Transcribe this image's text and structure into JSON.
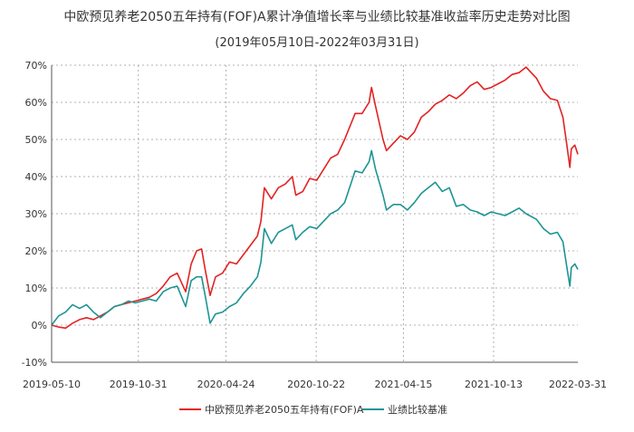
{
  "chart_data": {
    "type": "line",
    "title": "中欧预见养老2050五年持有(FOF)A累计净值增长率与业绩比较基准收益率历史走势对比图",
    "subtitle": "(2019年05月10日-2022年03月31日)",
    "xlabel": "",
    "ylabel": "",
    "x_ticks": [
      "2019-05-10",
      "2019-10-31",
      "2020-04-24",
      "2020-10-22",
      "2021-04-15",
      "2021-10-13",
      "2022-03-31"
    ],
    "y_ticks": [
      "70%",
      "60%",
      "50%",
      "40%",
      "30%",
      "20%",
      "10%",
      "0%",
      "-10%"
    ],
    "ylim": [
      -10,
      70
    ],
    "xlim": [
      "2019-05-10",
      "2022-03-31"
    ],
    "grid": true,
    "legend_position": "bottom-center",
    "series": [
      {
        "name": "中欧预见养老2050五年持有(FOF)A",
        "color": "#e32222",
        "points": [
          [
            "2019-05-10",
            0.0
          ],
          [
            "2019-05-24",
            -0.5
          ],
          [
            "2019-06-07",
            -0.8
          ],
          [
            "2019-06-21",
            0.5
          ],
          [
            "2019-07-05",
            1.5
          ],
          [
            "2019-07-19",
            2.0
          ],
          [
            "2019-08-02",
            1.5
          ],
          [
            "2019-08-16",
            2.5
          ],
          [
            "2019-08-30",
            3.5
          ],
          [
            "2019-09-13",
            5.0
          ],
          [
            "2019-09-27",
            5.5
          ],
          [
            "2019-10-11",
            6.0
          ],
          [
            "2019-10-25",
            6.5
          ],
          [
            "2019-11-08",
            7.0
          ],
          [
            "2019-11-22",
            7.5
          ],
          [
            "2019-12-06",
            8.5
          ],
          [
            "2019-12-20",
            10.5
          ],
          [
            "2020-01-03",
            13.0
          ],
          [
            "2020-01-17",
            14.0
          ],
          [
            "2020-02-03",
            9.0
          ],
          [
            "2020-02-14",
            16.5
          ],
          [
            "2020-02-25",
            20.0
          ],
          [
            "2020-03-06",
            20.5
          ],
          [
            "2020-03-13",
            15.0
          ],
          [
            "2020-03-23",
            8.0
          ],
          [
            "2020-04-03",
            13.0
          ],
          [
            "2020-04-17",
            14.0
          ],
          [
            "2020-05-01",
            17.0
          ],
          [
            "2020-05-15",
            16.5
          ],
          [
            "2020-05-29",
            19.0
          ],
          [
            "2020-06-12",
            21.5
          ],
          [
            "2020-06-26",
            24.0
          ],
          [
            "2020-07-03",
            28.0
          ],
          [
            "2020-07-10",
            37.0
          ],
          [
            "2020-07-24",
            34.0
          ],
          [
            "2020-08-07",
            37.0
          ],
          [
            "2020-08-21",
            38.0
          ],
          [
            "2020-09-04",
            40.0
          ],
          [
            "2020-09-11",
            35.0
          ],
          [
            "2020-09-25",
            36.0
          ],
          [
            "2020-10-09",
            39.5
          ],
          [
            "2020-10-23",
            39.0
          ],
          [
            "2020-11-06",
            42.0
          ],
          [
            "2020-11-20",
            45.0
          ],
          [
            "2020-12-04",
            46.0
          ],
          [
            "2020-12-18",
            50.0
          ],
          [
            "2021-01-08",
            57.0
          ],
          [
            "2021-01-22",
            57.0
          ],
          [
            "2021-02-05",
            60.0
          ],
          [
            "2021-02-10",
            64.0
          ],
          [
            "2021-02-18",
            59.0
          ],
          [
            "2021-03-05",
            50.0
          ],
          [
            "2021-03-12",
            47.0
          ],
          [
            "2021-03-26",
            49.0
          ],
          [
            "2021-04-09",
            51.0
          ],
          [
            "2021-04-23",
            50.0
          ],
          [
            "2021-05-07",
            52.0
          ],
          [
            "2021-05-21",
            56.0
          ],
          [
            "2021-06-04",
            57.5
          ],
          [
            "2021-06-18",
            59.5
          ],
          [
            "2021-07-02",
            60.5
          ],
          [
            "2021-07-16",
            62.0
          ],
          [
            "2021-07-30",
            61.0
          ],
          [
            "2021-08-13",
            62.5
          ],
          [
            "2021-08-27",
            64.5
          ],
          [
            "2021-09-10",
            65.5
          ],
          [
            "2021-09-24",
            63.5
          ],
          [
            "2021-10-08",
            64.0
          ],
          [
            "2021-10-22",
            65.0
          ],
          [
            "2021-11-05",
            66.0
          ],
          [
            "2021-11-19",
            67.5
          ],
          [
            "2021-12-03",
            68.0
          ],
          [
            "2021-12-17",
            69.5
          ],
          [
            "2021-12-24",
            68.5
          ],
          [
            "2022-01-07",
            66.5
          ],
          [
            "2022-01-21",
            63.0
          ],
          [
            "2022-02-04",
            61.0
          ],
          [
            "2022-02-18",
            60.5
          ],
          [
            "2022-03-01",
            56.0
          ],
          [
            "2022-03-08",
            49.5
          ],
          [
            "2022-03-15",
            42.5
          ],
          [
            "2022-03-18",
            47.5
          ],
          [
            "2022-03-25",
            48.5
          ],
          [
            "2022-03-31",
            46.0
          ]
        ]
      },
      {
        "name": "业绩比较基准",
        "color": "#1e9494",
        "points": [
          [
            "2019-05-10",
            0.0
          ],
          [
            "2019-05-24",
            2.5
          ],
          [
            "2019-06-07",
            3.5
          ],
          [
            "2019-06-21",
            5.5
          ],
          [
            "2019-07-05",
            4.5
          ],
          [
            "2019-07-19",
            5.5
          ],
          [
            "2019-08-02",
            3.5
          ],
          [
            "2019-08-16",
            2.0
          ],
          [
            "2019-08-30",
            3.5
          ],
          [
            "2019-09-13",
            5.0
          ],
          [
            "2019-09-27",
            5.5
          ],
          [
            "2019-10-11",
            6.5
          ],
          [
            "2019-10-25",
            6.0
          ],
          [
            "2019-11-08",
            6.5
          ],
          [
            "2019-11-22",
            7.0
          ],
          [
            "2019-12-06",
            6.5
          ],
          [
            "2019-12-20",
            9.0
          ],
          [
            "2020-01-03",
            10.0
          ],
          [
            "2020-01-17",
            10.5
          ],
          [
            "2020-02-03",
            5.0
          ],
          [
            "2020-02-14",
            12.0
          ],
          [
            "2020-02-25",
            13.0
          ],
          [
            "2020-03-06",
            13.0
          ],
          [
            "2020-03-13",
            8.0
          ],
          [
            "2020-03-23",
            0.5
          ],
          [
            "2020-04-03",
            3.0
          ],
          [
            "2020-04-17",
            3.5
          ],
          [
            "2020-05-01",
            5.0
          ],
          [
            "2020-05-15",
            6.0
          ],
          [
            "2020-05-29",
            8.5
          ],
          [
            "2020-06-12",
            10.5
          ],
          [
            "2020-06-26",
            13.0
          ],
          [
            "2020-07-03",
            17.0
          ],
          [
            "2020-07-10",
            26.0
          ],
          [
            "2020-07-24",
            22.0
          ],
          [
            "2020-08-07",
            25.0
          ],
          [
            "2020-08-21",
            26.0
          ],
          [
            "2020-09-04",
            27.0
          ],
          [
            "2020-09-11",
            23.0
          ],
          [
            "2020-09-25",
            25.0
          ],
          [
            "2020-10-09",
            26.5
          ],
          [
            "2020-10-23",
            26.0
          ],
          [
            "2020-11-06",
            28.0
          ],
          [
            "2020-11-20",
            30.0
          ],
          [
            "2020-12-04",
            31.0
          ],
          [
            "2020-12-18",
            33.0
          ],
          [
            "2021-01-08",
            41.5
          ],
          [
            "2021-01-22",
            41.0
          ],
          [
            "2021-02-05",
            44.0
          ],
          [
            "2021-02-10",
            47.0
          ],
          [
            "2021-02-18",
            42.0
          ],
          [
            "2021-03-05",
            35.0
          ],
          [
            "2021-03-12",
            31.0
          ],
          [
            "2021-03-26",
            32.5
          ],
          [
            "2021-04-09",
            32.5
          ],
          [
            "2021-04-23",
            31.0
          ],
          [
            "2021-05-07",
            33.0
          ],
          [
            "2021-05-21",
            35.5
          ],
          [
            "2021-06-04",
            37.0
          ],
          [
            "2021-06-18",
            38.5
          ],
          [
            "2021-07-02",
            36.0
          ],
          [
            "2021-07-16",
            37.0
          ],
          [
            "2021-07-30",
            32.0
          ],
          [
            "2021-08-13",
            32.5
          ],
          [
            "2021-08-27",
            31.0
          ],
          [
            "2021-09-10",
            30.5
          ],
          [
            "2021-09-24",
            29.5
          ],
          [
            "2021-10-08",
            30.5
          ],
          [
            "2021-10-22",
            30.0
          ],
          [
            "2021-11-05",
            29.5
          ],
          [
            "2021-11-19",
            30.5
          ],
          [
            "2021-12-03",
            31.5
          ],
          [
            "2021-12-17",
            30.0
          ],
          [
            "2021-12-24",
            29.5
          ],
          [
            "2022-01-07",
            28.5
          ],
          [
            "2022-01-21",
            26.0
          ],
          [
            "2022-02-04",
            24.5
          ],
          [
            "2022-02-18",
            25.0
          ],
          [
            "2022-03-01",
            22.5
          ],
          [
            "2022-03-08",
            16.5
          ],
          [
            "2022-03-15",
            10.5
          ],
          [
            "2022-03-18",
            15.5
          ],
          [
            "2022-03-25",
            16.5
          ],
          [
            "2022-03-31",
            15.0
          ]
        ]
      }
    ]
  }
}
